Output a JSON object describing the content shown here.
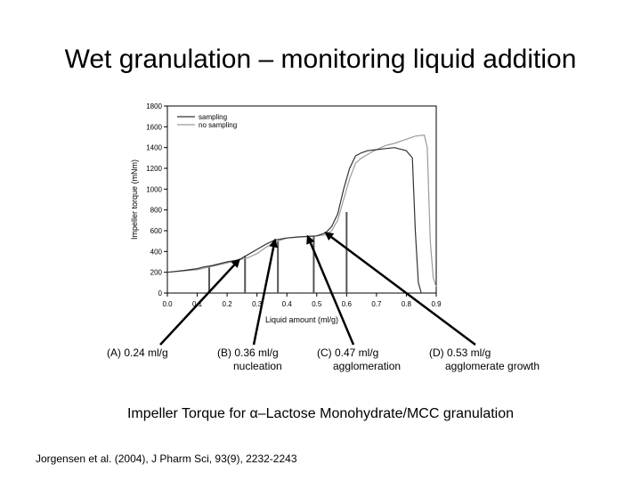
{
  "slide": {
    "title": "Wet granulation – monitoring liquid addition",
    "caption": "Impeller Torque for α–Lactose Monohydrate/MCC granulation",
    "reference": "Jorgensen et al. (2004), J Pharm Sci, 93(9), 2232-2243"
  },
  "annotations": [
    {
      "label": "(A)   0.24 ml/g",
      "sub": ""
    },
    {
      "label": "(B) 0.36 ml/g",
      "sub": "nucleation"
    },
    {
      "label": "(C) 0.47 ml/g",
      "sub": "agglomeration"
    },
    {
      "label": "(D) 0.53 ml/g",
      "sub": "agglomerate growth"
    }
  ],
  "chart_data": {
    "type": "line",
    "title": "",
    "xlabel": "Liquid amount (ml/g)",
    "ylabel": "Impeller torque (mNm)",
    "xlim": [
      0.0,
      0.9
    ],
    "ylim": [
      0,
      1800
    ],
    "xticks": [
      "0.0",
      "0.1",
      "0.2",
      "0.3",
      "0.4",
      "0.5",
      "0.6",
      "0.7",
      "0.8",
      "0.9"
    ],
    "yticks": [
      "0",
      "200",
      "400",
      "600",
      "800",
      "1000",
      "1200",
      "1400",
      "1600",
      "1800"
    ],
    "legend_position": "top-left",
    "colors": {
      "sampling": "#333333",
      "no_sampling": "#9a9a9a"
    },
    "arrow_targets": [
      0.24,
      0.36,
      0.47,
      0.53
    ],
    "series": [
      {
        "name": "sampling",
        "x": [
          0.0,
          0.05,
          0.1,
          0.12,
          0.15,
          0.2,
          0.24,
          0.27,
          0.3,
          0.33,
          0.36,
          0.4,
          0.44,
          0.47,
          0.5,
          0.53,
          0.55,
          0.57,
          0.59,
          0.61,
          0.63,
          0.65,
          0.67,
          0.7,
          0.73,
          0.76,
          0.8,
          0.82,
          0.83,
          0.84,
          0.85
        ],
        "y": [
          200,
          215,
          235,
          250,
          265,
          300,
          320,
          370,
          420,
          470,
          510,
          530,
          540,
          545,
          550,
          580,
          640,
          760,
          1000,
          1200,
          1320,
          1350,
          1370,
          1380,
          1390,
          1400,
          1370,
          1300,
          600,
          100,
          0
        ]
      },
      {
        "name": "no sampling",
        "x": [
          0.0,
          0.1,
          0.2,
          0.24,
          0.27,
          0.3,
          0.33,
          0.36,
          0.4,
          0.44,
          0.47,
          0.5,
          0.53,
          0.55,
          0.57,
          0.59,
          0.61,
          0.63,
          0.65,
          0.68,
          0.7,
          0.73,
          0.76,
          0.8,
          0.83,
          0.86,
          0.87,
          0.88,
          0.89,
          0.9
        ],
        "y": [
          200,
          225,
          290,
          320,
          340,
          380,
          440,
          490,
          530,
          540,
          545,
          550,
          560,
          600,
          700,
          900,
          1100,
          1250,
          1300,
          1350,
          1380,
          1420,
          1440,
          1480,
          1510,
          1520,
          1400,
          500,
          150,
          60
        ]
      }
    ],
    "sampling_dips": [
      {
        "x": 0.14,
        "y_top": 250
      },
      {
        "x": 0.26,
        "y_top": 360
      },
      {
        "x": 0.37,
        "y_top": 500
      },
      {
        "x": 0.49,
        "y_top": 550
      },
      {
        "x": 0.6,
        "y_top": 780
      }
    ]
  }
}
